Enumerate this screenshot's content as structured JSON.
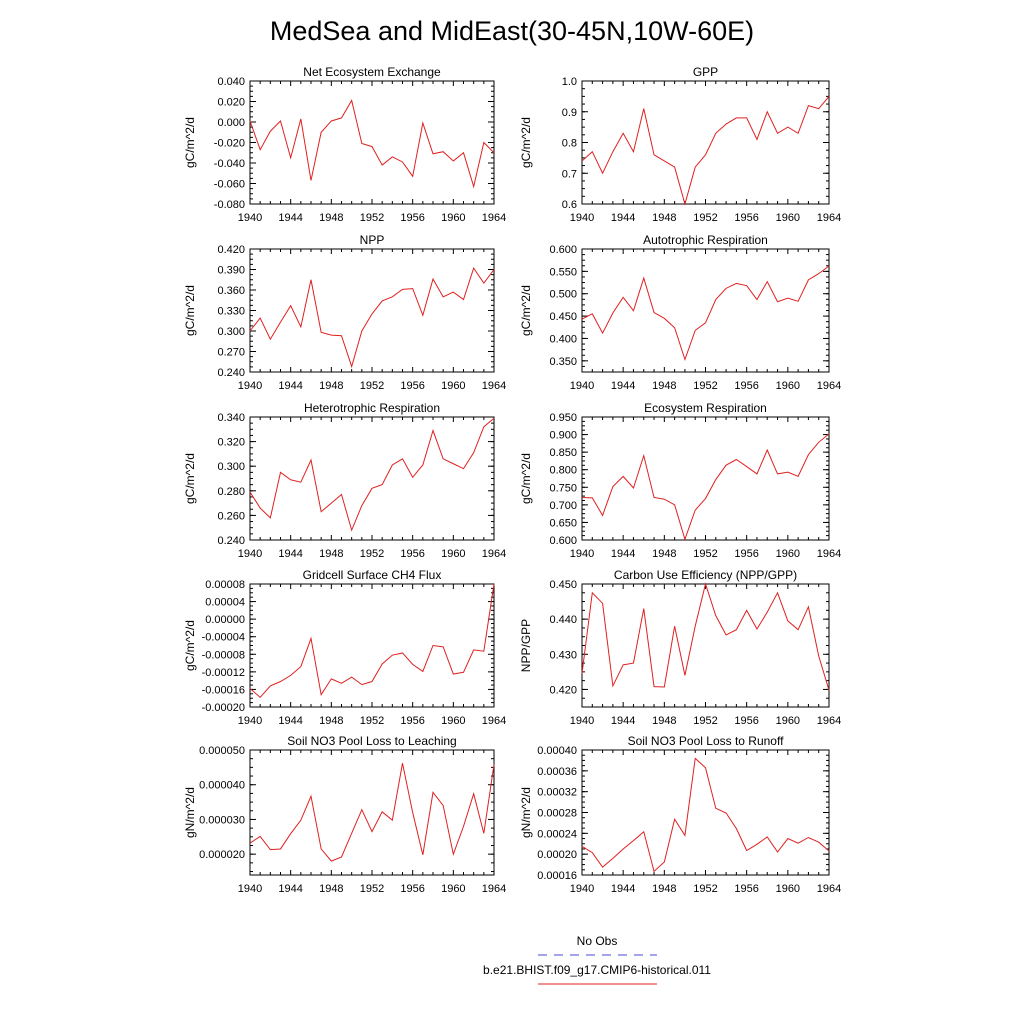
{
  "figure": {
    "title": "MedSea and MidEast(30-45N,10W-60E)"
  },
  "legend": {
    "entries": [
      {
        "label": "No Obs",
        "color": "#4a4ad8",
        "dash": "dashed"
      },
      {
        "label": "b.e21.BHIST.f09_g17.CMIP6-historical.011",
        "color": "#e02020",
        "dash": "solid"
      }
    ]
  },
  "chart_data": [
    {
      "type": "line",
      "title": "Net Ecosystem Exchange",
      "xlabel": "",
      "ylabel": "gC/m^2/d",
      "xlim": [
        1940,
        1964
      ],
      "ylim": [
        -0.08,
        0.04
      ],
      "xticks": [
        "1940",
        "1944",
        "1948",
        "1952",
        "1956",
        "1960",
        "1964"
      ],
      "yticks": [
        "-0.080",
        "-0.060",
        "-0.040",
        "-0.020",
        "0.000",
        "0.020",
        "0.040"
      ],
      "x": [
        1940,
        1941,
        1942,
        1943,
        1944,
        1945,
        1946,
        1947,
        1948,
        1949,
        1950,
        1951,
        1952,
        1953,
        1954,
        1955,
        1956,
        1957,
        1958,
        1959,
        1960,
        1961,
        1962,
        1963,
        1964
      ],
      "series": [
        {
          "color": "#e02020",
          "values": [
            0.001,
            -0.027,
            -0.009,
            0.001,
            -0.035,
            0.003,
            -0.057,
            -0.01,
            0.001,
            0.004,
            0.021,
            -0.021,
            -0.024,
            -0.042,
            -0.034,
            -0.039,
            -0.053,
            -0.001,
            -0.031,
            -0.029,
            -0.038,
            -0.03,
            -0.063,
            -0.02,
            -0.03
          ]
        }
      ]
    },
    {
      "type": "line",
      "title": "GPP",
      "xlabel": "",
      "ylabel": "gC/m^2/d",
      "xlim": [
        1940,
        1964
      ],
      "ylim": [
        0.6,
        1.0
      ],
      "xticks": [
        "1940",
        "1944",
        "1948",
        "1952",
        "1956",
        "1960",
        "1964"
      ],
      "yticks": [
        "0.6",
        "0.7",
        "0.8",
        "0.9",
        "1.0"
      ],
      "x": [
        1940,
        1941,
        1942,
        1943,
        1944,
        1945,
        1946,
        1947,
        1948,
        1949,
        1950,
        1951,
        1952,
        1953,
        1954,
        1955,
        1956,
        1957,
        1958,
        1959,
        1960,
        1961,
        1962,
        1963,
        1964
      ],
      "series": [
        {
          "color": "#e02020",
          "values": [
            0.74,
            0.77,
            0.7,
            0.77,
            0.83,
            0.77,
            0.91,
            0.76,
            0.74,
            0.72,
            0.6,
            0.72,
            0.76,
            0.83,
            0.86,
            0.88,
            0.88,
            0.81,
            0.9,
            0.83,
            0.85,
            0.83,
            0.92,
            0.91,
            0.95
          ]
        }
      ]
    },
    {
      "type": "line",
      "title": "NPP",
      "xlabel": "",
      "ylabel": "gC/m^2/d",
      "xlim": [
        1940,
        1964
      ],
      "ylim": [
        0.24,
        0.42
      ],
      "xticks": [
        "1940",
        "1944",
        "1948",
        "1952",
        "1956",
        "1960",
        "1964"
      ],
      "yticks": [
        "0.240",
        "0.270",
        "0.300",
        "0.330",
        "0.360",
        "0.390",
        "0.420"
      ],
      "x": [
        1940,
        1941,
        1942,
        1943,
        1944,
        1945,
        1946,
        1947,
        1948,
        1949,
        1950,
        1951,
        1952,
        1953,
        1954,
        1955,
        1956,
        1957,
        1958,
        1959,
        1960,
        1961,
        1962,
        1963,
        1964
      ],
      "series": [
        {
          "color": "#e02020",
          "values": [
            0.3,
            0.319,
            0.288,
            0.313,
            0.337,
            0.306,
            0.375,
            0.298,
            0.294,
            0.293,
            0.248,
            0.3,
            0.325,
            0.344,
            0.35,
            0.361,
            0.362,
            0.323,
            0.376,
            0.35,
            0.357,
            0.346,
            0.392,
            0.37,
            0.39
          ]
        }
      ]
    },
    {
      "type": "line",
      "title": "Autotrophic Respiration",
      "xlabel": "",
      "ylabel": "gC/m^2/d",
      "xlim": [
        1940,
        1964
      ],
      "ylim": [
        0.325,
        0.6
      ],
      "xticks": [
        "1940",
        "1944",
        "1948",
        "1952",
        "1956",
        "1960",
        "1964"
      ],
      "yticks": [
        "0.350",
        "0.400",
        "0.450",
        "0.500",
        "0.550",
        "0.600"
      ],
      "x": [
        1940,
        1941,
        1942,
        1943,
        1944,
        1945,
        1946,
        1947,
        1948,
        1949,
        1950,
        1951,
        1952,
        1953,
        1954,
        1955,
        1956,
        1957,
        1958,
        1959,
        1960,
        1961,
        1962,
        1963,
        1964
      ],
      "series": [
        {
          "color": "#e02020",
          "values": [
            0.443,
            0.455,
            0.412,
            0.457,
            0.492,
            0.462,
            0.535,
            0.458,
            0.445,
            0.424,
            0.353,
            0.418,
            0.435,
            0.487,
            0.512,
            0.523,
            0.518,
            0.487,
            0.527,
            0.482,
            0.49,
            0.483,
            0.531,
            0.545,
            0.562
          ]
        }
      ]
    },
    {
      "type": "line",
      "title": "Heterotrophic Respiration",
      "xlabel": "",
      "ylabel": "gC/m^2/d",
      "xlim": [
        1940,
        1964
      ],
      "ylim": [
        0.24,
        0.34
      ],
      "xticks": [
        "1940",
        "1944",
        "1948",
        "1952",
        "1956",
        "1960",
        "1964"
      ],
      "yticks": [
        "0.240",
        "0.260",
        "0.280",
        "0.300",
        "0.320",
        "0.340"
      ],
      "x": [
        1940,
        1941,
        1942,
        1943,
        1944,
        1945,
        1946,
        1947,
        1948,
        1949,
        1950,
        1951,
        1952,
        1953,
        1954,
        1955,
        1956,
        1957,
        1958,
        1959,
        1960,
        1961,
        1962,
        1963,
        1964
      ],
      "series": [
        {
          "color": "#e02020",
          "values": [
            0.279,
            0.266,
            0.258,
            0.295,
            0.289,
            0.287,
            0.305,
            0.263,
            0.27,
            0.277,
            0.248,
            0.268,
            0.282,
            0.285,
            0.301,
            0.306,
            0.291,
            0.301,
            0.329,
            0.306,
            0.302,
            0.298,
            0.311,
            0.332,
            0.339
          ]
        }
      ]
    },
    {
      "type": "line",
      "title": "Ecosystem Respiration",
      "xlabel": "",
      "ylabel": "gC/m^2/d",
      "xlim": [
        1940,
        1964
      ],
      "ylim": [
        0.6,
        0.95
      ],
      "xticks": [
        "1940",
        "1944",
        "1948",
        "1952",
        "1956",
        "1960",
        "1964"
      ],
      "yticks": [
        "0.600",
        "0.650",
        "0.700",
        "0.750",
        "0.800",
        "0.850",
        "0.900",
        "0.950"
      ],
      "x": [
        1940,
        1941,
        1942,
        1943,
        1944,
        1945,
        1946,
        1947,
        1948,
        1949,
        1950,
        1951,
        1952,
        1953,
        1954,
        1955,
        1956,
        1957,
        1958,
        1959,
        1960,
        1961,
        1962,
        1963,
        1964
      ],
      "series": [
        {
          "color": "#e02020",
          "values": [
            0.721,
            0.72,
            0.67,
            0.752,
            0.781,
            0.748,
            0.84,
            0.721,
            0.716,
            0.7,
            0.602,
            0.685,
            0.718,
            0.772,
            0.813,
            0.829,
            0.809,
            0.788,
            0.856,
            0.788,
            0.793,
            0.781,
            0.843,
            0.878,
            0.902
          ]
        }
      ]
    },
    {
      "type": "line",
      "title": "Gridcell Surface CH4 Flux",
      "xlabel": "",
      "ylabel": "gC/m^2/d",
      "xlim": [
        1940,
        1964
      ],
      "ylim": [
        -0.0002,
        8e-05
      ],
      "xticks": [
        "1940",
        "1944",
        "1948",
        "1952",
        "1956",
        "1960",
        "1964"
      ],
      "yticks": [
        "-0.00020",
        "-0.00016",
        "-0.00012",
        "-0.00008",
        "-0.00004",
        "0.00000",
        "0.00004",
        "0.00008"
      ],
      "x": [
        1940,
        1941,
        1942,
        1943,
        1944,
        1945,
        1946,
        1947,
        1948,
        1949,
        1950,
        1951,
        1952,
        1953,
        1954,
        1955,
        1956,
        1957,
        1958,
        1959,
        1960,
        1961,
        1962,
        1963,
        1964
      ],
      "series": [
        {
          "color": "#e02020",
          "values": [
            -0.000158,
            -0.000178,
            -0.000152,
            -0.000142,
            -0.000128,
            -0.000108,
            -4.4e-05,
            -0.000172,
            -0.000136,
            -0.000146,
            -0.000132,
            -0.000149,
            -0.000142,
            -0.000102,
            -8.2e-05,
            -7.7e-05,
            -0.000103,
            -0.000119,
            -6e-05,
            -6.3e-05,
            -0.000125,
            -0.000121,
            -7e-05,
            -7.3e-05,
            8e-05
          ]
        }
      ]
    },
    {
      "type": "line",
      "title": "Carbon Use Efficiency (NPP/GPP)",
      "xlabel": "",
      "ylabel": "NPP/GPP",
      "xlim": [
        1940,
        1964
      ],
      "ylim": [
        0.415,
        0.45
      ],
      "xticks": [
        "1940",
        "1944",
        "1948",
        "1952",
        "1956",
        "1960",
        "1964"
      ],
      "yticks": [
        "0.420",
        "0.430",
        "0.440",
        "0.450"
      ],
      "x": [
        1940,
        1941,
        1942,
        1943,
        1944,
        1945,
        1946,
        1947,
        1948,
        1949,
        1950,
        1951,
        1952,
        1953,
        1954,
        1955,
        1956,
        1957,
        1958,
        1959,
        1960,
        1961,
        1962,
        1963,
        1964
      ],
      "series": [
        {
          "color": "#e02020",
          "values": [
            0.4245,
            0.4475,
            0.4445,
            0.421,
            0.427,
            0.4275,
            0.443,
            0.4208,
            0.4207,
            0.438,
            0.424,
            0.438,
            0.45,
            0.441,
            0.4355,
            0.437,
            0.4425,
            0.4372,
            0.442,
            0.4475,
            0.4395,
            0.437,
            0.4435,
            0.4295,
            0.4198
          ]
        }
      ]
    },
    {
      "type": "line",
      "title": "Soil NO3 Pool Loss to Leaching",
      "xlabel": "",
      "ylabel": "gN/m^2/d",
      "xlim": [
        1940,
        1964
      ],
      "ylim": [
        1.4e-05,
        5e-05
      ],
      "xticks": [
        "1940",
        "1944",
        "1948",
        "1952",
        "1956",
        "1960",
        "1964"
      ],
      "yticks": [
        "0.000020",
        "0.000030",
        "0.000040",
        "0.000050"
      ],
      "x": [
        1940,
        1941,
        1942,
        1943,
        1944,
        1945,
        1946,
        1947,
        1948,
        1949,
        1950,
        1951,
        1952,
        1953,
        1954,
        1955,
        1956,
        1957,
        1958,
        1959,
        1960,
        1961,
        1962,
        1963,
        1964
      ],
      "series": [
        {
          "color": "#e02020",
          "values": [
            2.32e-05,
            2.51e-05,
            2.13e-05,
            2.15e-05,
            2.59e-05,
            2.98e-05,
            3.67e-05,
            2.15e-05,
            1.8e-05,
            1.92e-05,
            2.6e-05,
            3.28e-05,
            2.65e-05,
            3.22e-05,
            2.98e-05,
            4.62e-05,
            3.2e-05,
            1.98e-05,
            3.78e-05,
            3.4e-05,
            2e-05,
            2.8e-05,
            3.74e-05,
            2.6e-05,
            4.58e-05
          ]
        }
      ]
    },
    {
      "type": "line",
      "title": "Soil NO3 Pool Loss to Runoff",
      "xlabel": "",
      "ylabel": "gN/m^2/d",
      "xlim": [
        1940,
        1964
      ],
      "ylim": [
        0.00016,
        0.0004
      ],
      "xticks": [
        "1940",
        "1944",
        "1948",
        "1952",
        "1956",
        "1960",
        "1964"
      ],
      "yticks": [
        "0.00016",
        "0.00020",
        "0.00024",
        "0.00028",
        "0.00032",
        "0.00036",
        "0.00040"
      ],
      "x": [
        1940,
        1941,
        1942,
        1943,
        1944,
        1945,
        1946,
        1947,
        1948,
        1949,
        1950,
        1951,
        1952,
        1953,
        1954,
        1955,
        1956,
        1957,
        1958,
        1959,
        1960,
        1961,
        1962,
        1963,
        1964
      ],
      "series": [
        {
          "color": "#e02020",
          "values": [
            0.000215,
            0.000203,
            0.000175,
            0.000192,
            0.00021,
            0.000226,
            0.000243,
            0.000167,
            0.000185,
            0.000267,
            0.000236,
            0.000384,
            0.000366,
            0.000288,
            0.000279,
            0.000249,
            0.000207,
            0.000219,
            0.000233,
            0.000204,
            0.00023,
            0.000221,
            0.000232,
            0.000223,
            0.000206
          ]
        }
      ]
    }
  ]
}
